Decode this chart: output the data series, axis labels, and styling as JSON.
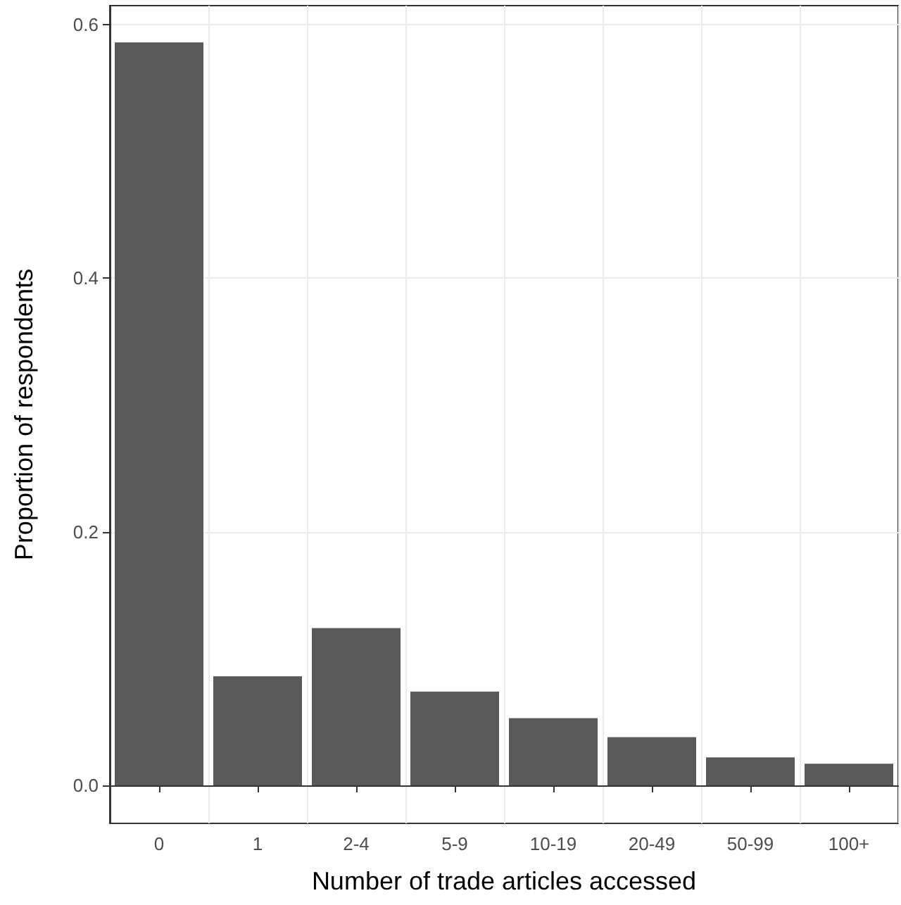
{
  "chart_data": {
    "type": "bar",
    "xlabel": "Number of trade articles accessed",
    "ylabel": "Proportion of respondents",
    "categories": [
      "0",
      "1",
      "2-4",
      "5-9",
      "10-19",
      "20-49",
      "50-99",
      "100+"
    ],
    "values": [
      0.586,
      0.086,
      0.124,
      0.074,
      0.053,
      0.038,
      0.022,
      0.017
    ],
    "color": "#595959",
    "ylim": [
      -0.03,
      0.615
    ],
    "yticks": [
      {
        "value": 0,
        "label": "0.0"
      },
      {
        "value": 0.2,
        "label": "0.2"
      },
      {
        "value": 0.4,
        "label": "0.4"
      },
      {
        "value": 0.6,
        "label": "0.6"
      }
    ],
    "grid": true
  }
}
